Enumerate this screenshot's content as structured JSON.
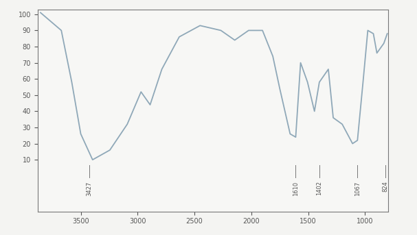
{
  "chart_data": {
    "type": "line",
    "x": [
      3854,
      3671,
      3579,
      3500,
      3396,
      3244,
      3091,
      2970,
      2890,
      2787,
      2634,
      2451,
      2268,
      2146,
      2024,
      1902,
      1811,
      1750,
      1659,
      1610,
      1567,
      1506,
      1445,
      1402,
      1323,
      1280,
      1201,
      1110,
      1067,
      1018,
      976,
      927,
      896,
      835,
      805
    ],
    "values": [
      101,
      90,
      58,
      26,
      10,
      16,
      32,
      52,
      44,
      66,
      86,
      93,
      90,
      84,
      90,
      90,
      74,
      54,
      26,
      24,
      70,
      58,
      40,
      58,
      66,
      36,
      32,
      20,
      22,
      58,
      90,
      88,
      76,
      82,
      88
    ],
    "color": "#8fa8b8",
    "xlim": [
      3880,
      800
    ],
    "xticks": [
      3500,
      3000,
      2500,
      2000,
      1500,
      1000
    ],
    "ylim": [
      -22,
      103
    ],
    "yticks": [
      10,
      20,
      30,
      40,
      50,
      60,
      70,
      80,
      90,
      100
    ],
    "peaks": [
      {
        "value": 3427,
        "label": "3427"
      },
      {
        "value": 1610,
        "label": "1610"
      },
      {
        "value": 1402,
        "label": "1402"
      },
      {
        "value": 1067,
        "label": "1067"
      },
      {
        "value": 824,
        "label": "824"
      }
    ],
    "grid": false
  }
}
